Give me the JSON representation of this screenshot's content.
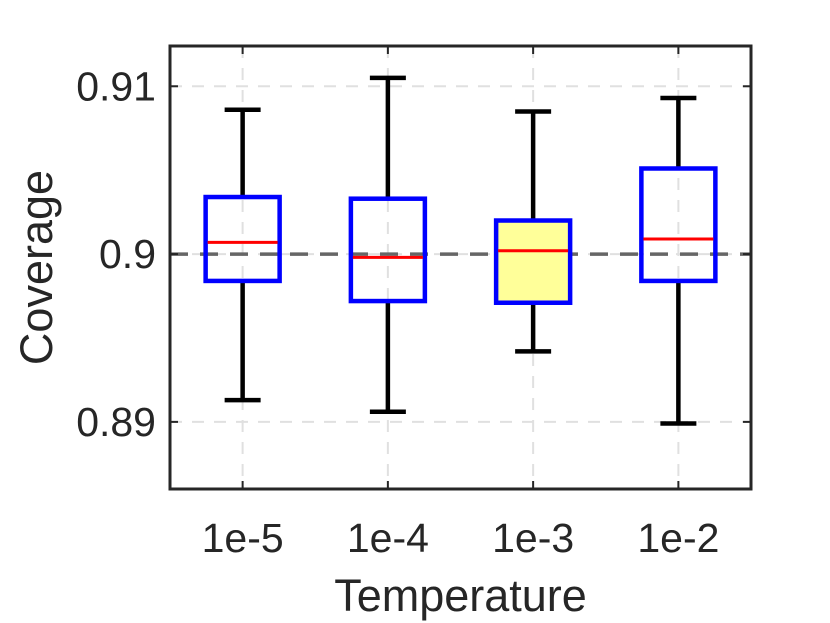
{
  "chart_data": {
    "type": "box",
    "title": "",
    "xlabel": "Temperature",
    "ylabel": "Coverage",
    "ylim": [
      0.886,
      0.9124
    ],
    "yticks": [
      0.89,
      0.9,
      0.91
    ],
    "ytick_labels": [
      "0.89",
      "0.9",
      "0.91"
    ],
    "categories": [
      "1e-5",
      "1e-4",
      "1e-3",
      "1e-2"
    ],
    "boxes": [
      {
        "label": "1e-5",
        "whisker_low": 0.8913,
        "q1": 0.8984,
        "median": 0.9007,
        "q3": 0.9034,
        "whisker_high": 0.9086,
        "highlighted": false
      },
      {
        "label": "1e-4",
        "whisker_low": 0.8906,
        "q1": 0.8972,
        "median": 0.8998,
        "q3": 0.9033,
        "whisker_high": 0.9105,
        "highlighted": false
      },
      {
        "label": "1e-3",
        "whisker_low": 0.8942,
        "q1": 0.8971,
        "median": 0.9002,
        "q3": 0.902,
        "whisker_high": 0.9085,
        "highlighted": true
      },
      {
        "label": "1e-2",
        "whisker_low": 0.8899,
        "q1": 0.8984,
        "median": 0.9009,
        "q3": 0.9051,
        "whisker_high": 0.9093,
        "highlighted": false
      }
    ],
    "reference_line": {
      "y": 0.9,
      "style": "dashed",
      "color": "#666666"
    },
    "grid": true,
    "colors": {
      "box_edge": "#0000ff",
      "median": "#ff0000",
      "whisker": "#000000",
      "highlight_fill": "#ffff99",
      "grid": "#e0e0e0",
      "axes": "#262626"
    }
  }
}
